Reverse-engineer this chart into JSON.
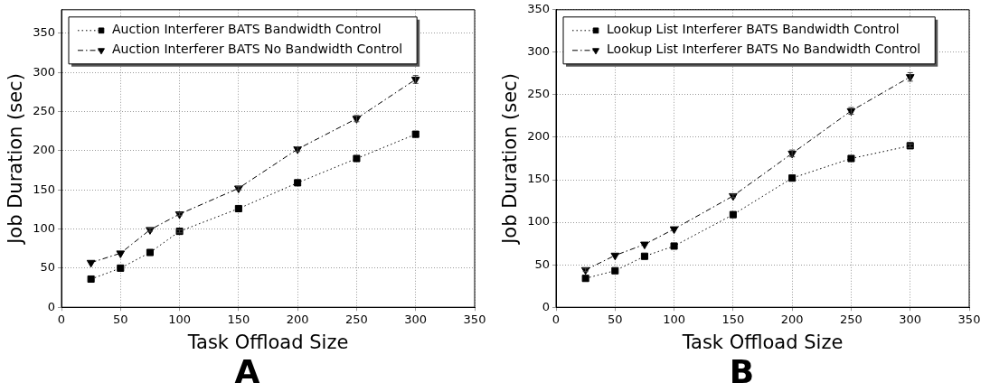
{
  "chart_data": [
    {
      "type": "line",
      "xlabel": "Task Offload Size",
      "ylabel": "Job Duration (sec)",
      "x": [
        25,
        50,
        75,
        100,
        150,
        200,
        250,
        300
      ],
      "xlim": [
        0,
        350
      ],
      "xticks": [
        0,
        50,
        100,
        150,
        200,
        250,
        300,
        350
      ],
      "ylim": [
        0,
        380
      ],
      "yticks": [
        0,
        50,
        100,
        150,
        200,
        250,
        300,
        350
      ],
      "grid": true,
      "legend": "top left",
      "annotations": [
        "A"
      ],
      "series": [
        {
          "name": "Auction Interferer BATS Bandwidth Control",
          "color": "#000000",
          "marker": "square",
          "line_style": "dotted",
          "values": [
            36,
            50,
            70,
            97,
            126,
            159,
            190,
            221
          ],
          "errors": [
            null,
            null,
            null,
            2,
            null,
            null,
            null,
            null
          ]
        },
        {
          "name": "Auction Interferer BATS No Bandwidth Control",
          "color": "#000000",
          "marker": "triangle",
          "line_style": "dashed",
          "values": [
            57,
            69,
            99,
            119,
            152,
            202,
            241,
            291
          ],
          "errors": [
            null,
            null,
            2,
            2,
            2,
            3,
            4,
            5
          ]
        }
      ]
    },
    {
      "type": "line",
      "xlabel": "Task Offload Size",
      "ylabel": "Job Duration (sec)",
      "x": [
        25,
        50,
        75,
        100,
        150,
        200,
        250,
        300
      ],
      "xlim": [
        0,
        350
      ],
      "xticks": [
        0,
        50,
        100,
        150,
        200,
        250,
        300,
        350
      ],
      "ylim": [
        0,
        350
      ],
      "yticks": [
        0,
        50,
        100,
        150,
        200,
        250,
        300,
        350
      ],
      "grid": true,
      "legend": "top left",
      "annotations": [
        "B"
      ],
      "series": [
        {
          "name": "Lookup List Interferer BATS Bandwidth Control",
          "color": "#000000",
          "marker": "square",
          "line_style": "dotted",
          "values": [
            34,
            43,
            60,
            72,
            109,
            152,
            175,
            190
          ],
          "errors": [
            null,
            null,
            null,
            null,
            null,
            null,
            null,
            2
          ]
        },
        {
          "name": "Lookup List Interferer BATS No Bandwidth Control",
          "color": "#000000",
          "marker": "triangle",
          "line_style": "dashed",
          "values": [
            44,
            61,
            74,
            92,
            131,
            181,
            231,
            271
          ],
          "errors": [
            2,
            null,
            null,
            null,
            2,
            4,
            4,
            5
          ]
        }
      ]
    }
  ]
}
